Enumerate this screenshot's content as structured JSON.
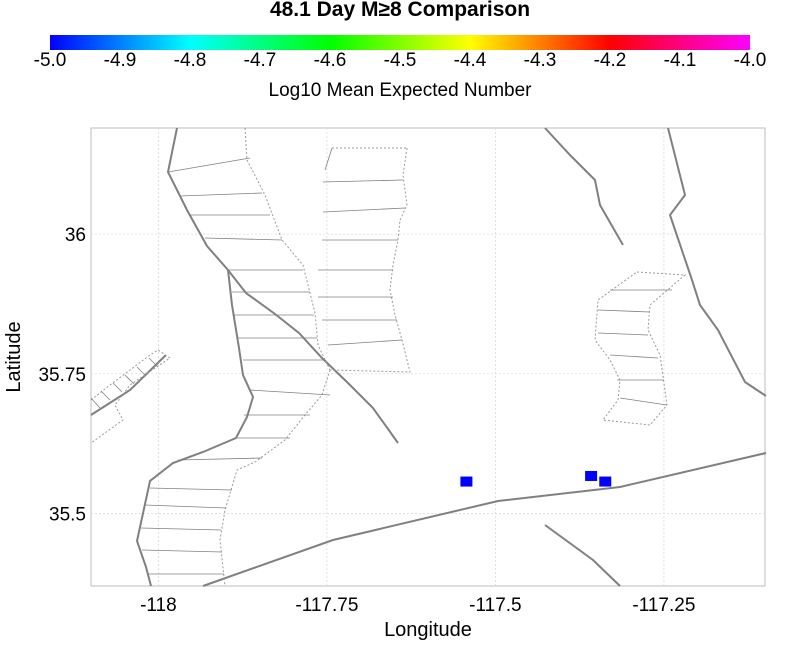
{
  "title": "48.1 Day M≥8 Comparison",
  "colorbar": {
    "label": "Log10 Mean Expected Number",
    "ticks": [
      "-5.0",
      "-4.9",
      "-4.8",
      "-4.7",
      "-4.6",
      "-4.5",
      "-4.4",
      "-4.3",
      "-4.2",
      "-4.1",
      "-4.0"
    ],
    "colors": [
      "#0000ff",
      "#00ffff",
      "#00ff00",
      "#ffff00",
      "#ff0000",
      "#ff00ff"
    ]
  },
  "chart_data": {
    "type": "scatter",
    "xlabel": "Longitude",
    "ylabel": "Latitude",
    "xlim": [
      -118.1,
      -117.1
    ],
    "ylim": [
      35.37,
      36.19
    ],
    "x_ticks": [
      "-118",
      "-117.75",
      "-117.5",
      "-117.25"
    ],
    "y_ticks": [
      "36",
      "35.75",
      "35.5"
    ],
    "x_tick_values": [
      -118,
      -117.75,
      -117.5,
      -117.25
    ],
    "y_tick_values": [
      36,
      35.75,
      35.5
    ],
    "grid": true,
    "points": [
      {
        "lon": -117.543,
        "lat": 35.557,
        "log10_value": -5.0,
        "color": "#0000ff"
      },
      {
        "lon": -117.358,
        "lat": 35.567,
        "log10_value": -5.0,
        "color": "#0000ff"
      },
      {
        "lon": -117.337,
        "lat": 35.557,
        "log10_value": -5.0,
        "color": "#0000ff"
      }
    ]
  }
}
